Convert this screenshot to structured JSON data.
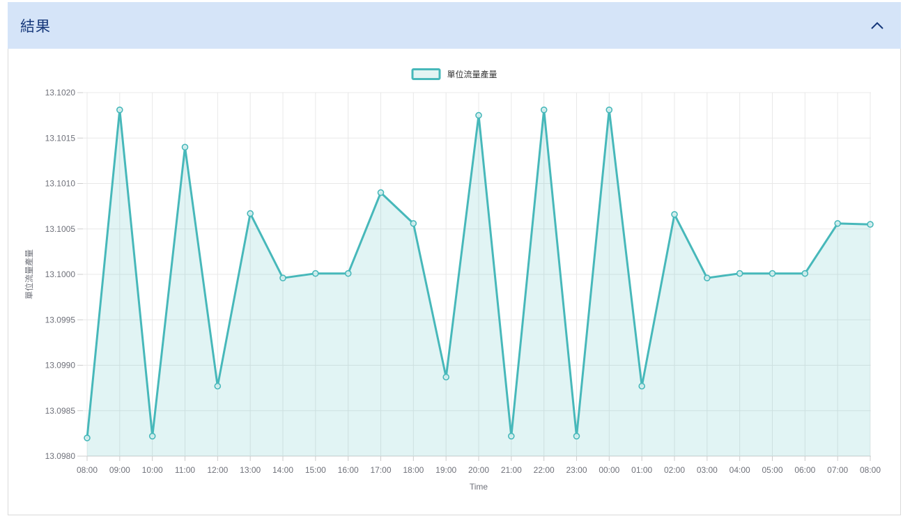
{
  "panel": {
    "title": "結果",
    "collapse_icon": "chevron-up"
  },
  "colors": {
    "header_bg": "#d5e4f8",
    "header_text": "#15377a",
    "line": "#47b8ba",
    "area_fill": "rgba(71,184,186,0.16)",
    "marker_fill": "#d8f0ef",
    "grid_line": "#e8e8e8",
    "axis_line": "#cccccc",
    "tick_text": "#6e7079",
    "axis_title_text": "#6e7079",
    "legend_text": "#333333",
    "legend_swatch_fill": "#e3f4f3",
    "panel_border": "#d9d9d9"
  },
  "chart_data": {
    "type": "area",
    "title": "",
    "xlabel": "Time",
    "ylabel": "單位流量產量",
    "legend_position": "top-center",
    "grid": true,
    "x": [
      "08:00",
      "09:00",
      "10:00",
      "11:00",
      "12:00",
      "13:00",
      "14:00",
      "15:00",
      "16:00",
      "17:00",
      "18:00",
      "19:00",
      "20:00",
      "21:00",
      "22:00",
      "23:00",
      "00:00",
      "01:00",
      "02:00",
      "03:00",
      "04:00",
      "05:00",
      "06:00",
      "07:00",
      "08:00"
    ],
    "series": [
      {
        "name": "單位流量產量",
        "values": [
          13.0982,
          13.10181,
          13.09822,
          13.1014,
          13.09877,
          13.10067,
          13.09996,
          13.10001,
          13.10001,
          13.1009,
          13.10056,
          13.09887,
          13.10175,
          13.09822,
          13.10181,
          13.09822,
          13.10181,
          13.09877,
          13.10066,
          13.09996,
          13.10001,
          13.10001,
          13.10001,
          13.10056,
          13.10055
        ]
      }
    ],
    "ylim": [
      13.098,
      13.102
    ],
    "ytick_step": 0.0005,
    "ytick_decimals": 4
  }
}
